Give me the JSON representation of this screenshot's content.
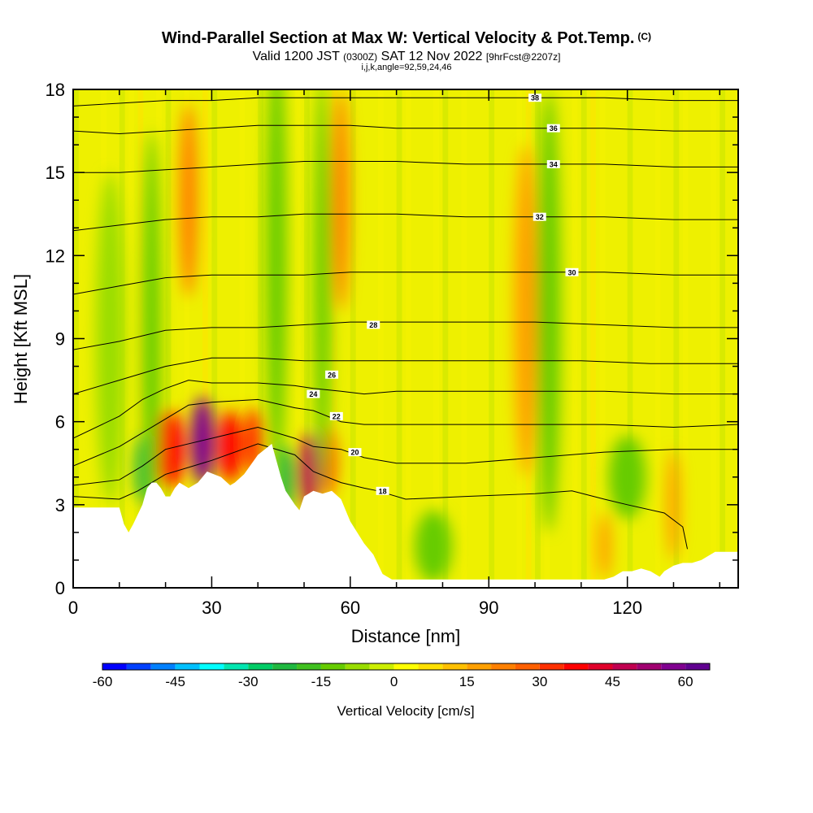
{
  "header": {
    "title": "Wind-Parallel Section at Max W: Vertical Velocity & Pot.Temp.",
    "copyright": "(C)",
    "subtitle_a": "Valid 1200 JST",
    "subtitle_b": "(0300Z)",
    "subtitle_c": "SAT 12 Nov 2022",
    "subtitle_d": "[9hrFcst@2207z]",
    "subtitle2": "i,j,k,angle=92,59,24,46"
  },
  "chart_data": {
    "type": "heatmap",
    "xlabel": "Distance [nm]",
    "ylabel": "Height [Kft MSL]",
    "xlim": [
      0,
      144
    ],
    "ylim": [
      0,
      18
    ],
    "xticks": [
      0,
      30,
      60,
      90,
      120
    ],
    "xtick_labels": [
      "0",
      "30",
      "60",
      "90",
      "120"
    ],
    "yticks": [
      0,
      3,
      6,
      9,
      12,
      15,
      18
    ],
    "ytick_labels": [
      "0",
      "3",
      "6",
      "9",
      "12",
      "15",
      "18"
    ],
    "terrain": [
      [
        0,
        2.9
      ],
      [
        10,
        2.9
      ],
      [
        11,
        2.3
      ],
      [
        12,
        2.0
      ],
      [
        13,
        2.3
      ],
      [
        15,
        3.0
      ],
      [
        16,
        3.6
      ],
      [
        17,
        3.8
      ],
      [
        18,
        3.8
      ],
      [
        19,
        3.6
      ],
      [
        20,
        3.3
      ],
      [
        21,
        3.3
      ],
      [
        22,
        3.6
      ],
      [
        23,
        3.8
      ],
      [
        25,
        3.6
      ],
      [
        27,
        3.8
      ],
      [
        29,
        4.2
      ],
      [
        32,
        4.0
      ],
      [
        34,
        3.7
      ],
      [
        35,
        3.8
      ],
      [
        37,
        4.1
      ],
      [
        40,
        4.8
      ],
      [
        43,
        5.2
      ],
      [
        44,
        4.6
      ],
      [
        45,
        4.0
      ],
      [
        46,
        3.5
      ],
      [
        48,
        3.0
      ],
      [
        49,
        2.8
      ],
      [
        50,
        3.3
      ],
      [
        52,
        3.5
      ],
      [
        54,
        3.4
      ],
      [
        56,
        3.5
      ],
      [
        58,
        3.2
      ],
      [
        60,
        2.4
      ],
      [
        63,
        1.6
      ],
      [
        65,
        1.2
      ],
      [
        67,
        0.5
      ],
      [
        69,
        0.3
      ],
      [
        72,
        0.3
      ],
      [
        80,
        0.3
      ],
      [
        90,
        0.3
      ],
      [
        100,
        0.3
      ],
      [
        110,
        0.3
      ],
      [
        115,
        0.3
      ],
      [
        117,
        0.4
      ],
      [
        119,
        0.6
      ],
      [
        121,
        0.6
      ],
      [
        123,
        0.7
      ],
      [
        125,
        0.6
      ],
      [
        127,
        0.4
      ],
      [
        128,
        0.6
      ],
      [
        130,
        0.8
      ],
      [
        132,
        0.9
      ],
      [
        134,
        0.9
      ],
      [
        136,
        1.0
      ],
      [
        139,
        1.3
      ],
      [
        144,
        1.3
      ]
    ],
    "contours": [
      {
        "theta": 18,
        "label_x": 67,
        "label_y": 3.5,
        "points": [
          [
            0,
            3.3
          ],
          [
            10,
            3.2
          ],
          [
            14,
            3.5
          ],
          [
            20,
            4.1
          ],
          [
            30,
            4.6
          ],
          [
            40,
            5.2
          ],
          [
            48,
            4.8
          ],
          [
            52,
            4.2
          ],
          [
            58,
            3.8
          ],
          [
            63,
            3.6
          ],
          [
            66,
            3.5
          ],
          [
            72,
            3.2
          ],
          [
            85,
            3.3
          ],
          [
            100,
            3.4
          ],
          [
            108,
            3.5
          ],
          [
            115,
            3.2
          ],
          [
            120,
            3.0
          ],
          [
            128,
            2.7
          ],
          [
            132,
            2.2
          ],
          [
            133,
            1.4
          ]
        ]
      },
      {
        "theta": 20,
        "label_x": 61,
        "label_y": 4.9,
        "points": [
          [
            0,
            3.7
          ],
          [
            10,
            3.9
          ],
          [
            15,
            4.4
          ],
          [
            20,
            5.0
          ],
          [
            30,
            5.4
          ],
          [
            40,
            5.8
          ],
          [
            48,
            5.4
          ],
          [
            52,
            5.1
          ],
          [
            58,
            5.0
          ],
          [
            63,
            4.7
          ],
          [
            70,
            4.5
          ],
          [
            85,
            4.5
          ],
          [
            100,
            4.7
          ],
          [
            115,
            4.9
          ],
          [
            130,
            5.0
          ],
          [
            144,
            5.0
          ]
        ]
      },
      {
        "theta": 22,
        "label_x": 57,
        "label_y": 6.2,
        "points": [
          [
            0,
            4.4
          ],
          [
            10,
            5.1
          ],
          [
            15,
            5.6
          ],
          [
            20,
            6.1
          ],
          [
            25,
            6.6
          ],
          [
            30,
            6.7
          ],
          [
            40,
            6.8
          ],
          [
            48,
            6.5
          ],
          [
            52,
            6.4
          ],
          [
            58,
            6.0
          ],
          [
            63,
            5.9
          ],
          [
            70,
            5.9
          ],
          [
            85,
            5.9
          ],
          [
            100,
            5.9
          ],
          [
            115,
            5.9
          ],
          [
            130,
            5.8
          ],
          [
            144,
            5.9
          ]
        ]
      },
      {
        "theta": 24,
        "label_x": 52,
        "label_y": 7.0,
        "points": [
          [
            0,
            5.4
          ],
          [
            10,
            6.2
          ],
          [
            15,
            6.8
          ],
          [
            20,
            7.2
          ],
          [
            25,
            7.5
          ],
          [
            30,
            7.4
          ],
          [
            40,
            7.4
          ],
          [
            48,
            7.3
          ],
          [
            52,
            7.2
          ],
          [
            58,
            7.1
          ],
          [
            63,
            7.0
          ],
          [
            70,
            7.1
          ],
          [
            85,
            7.1
          ],
          [
            100,
            7.1
          ],
          [
            115,
            7.1
          ],
          [
            130,
            7.0
          ],
          [
            144,
            7.0
          ]
        ]
      },
      {
        "theta": 26,
        "label_x": 56,
        "label_y": 7.7,
        "points": [
          [
            0,
            7.0
          ],
          [
            10,
            7.5
          ],
          [
            20,
            8.0
          ],
          [
            30,
            8.3
          ],
          [
            40,
            8.3
          ],
          [
            50,
            8.2
          ],
          [
            58,
            8.2
          ],
          [
            65,
            8.2
          ],
          [
            80,
            8.2
          ],
          [
            95,
            8.2
          ],
          [
            110,
            8.2
          ],
          [
            125,
            8.1
          ],
          [
            144,
            8.1
          ]
        ]
      },
      {
        "theta": 28,
        "label_x": 65,
        "label_y": 9.5,
        "points": [
          [
            0,
            8.6
          ],
          [
            10,
            8.9
          ],
          [
            20,
            9.3
          ],
          [
            30,
            9.4
          ],
          [
            40,
            9.4
          ],
          [
            50,
            9.5
          ],
          [
            60,
            9.6
          ],
          [
            70,
            9.6
          ],
          [
            85,
            9.6
          ],
          [
            100,
            9.6
          ],
          [
            115,
            9.5
          ],
          [
            130,
            9.4
          ],
          [
            144,
            9.4
          ]
        ]
      },
      {
        "theta": 30,
        "label_x": 108,
        "label_y": 11.4,
        "points": [
          [
            0,
            10.6
          ],
          [
            10,
            10.9
          ],
          [
            20,
            11.2
          ],
          [
            30,
            11.3
          ],
          [
            40,
            11.3
          ],
          [
            50,
            11.3
          ],
          [
            60,
            11.4
          ],
          [
            70,
            11.4
          ],
          [
            85,
            11.4
          ],
          [
            100,
            11.4
          ],
          [
            115,
            11.4
          ],
          [
            130,
            11.3
          ],
          [
            144,
            11.3
          ]
        ]
      },
      {
        "theta": 32,
        "label_x": 101,
        "label_y": 13.4,
        "points": [
          [
            0,
            12.9
          ],
          [
            10,
            13.1
          ],
          [
            20,
            13.3
          ],
          [
            30,
            13.4
          ],
          [
            40,
            13.4
          ],
          [
            50,
            13.5
          ],
          [
            60,
            13.5
          ],
          [
            70,
            13.5
          ],
          [
            85,
            13.4
          ],
          [
            100,
            13.4
          ],
          [
            115,
            13.4
          ],
          [
            130,
            13.3
          ],
          [
            144,
            13.3
          ]
        ]
      },
      {
        "theta": 34,
        "label_x": 104,
        "label_y": 15.3,
        "points": [
          [
            0,
            15.0
          ],
          [
            10,
            15.0
          ],
          [
            20,
            15.1
          ],
          [
            30,
            15.2
          ],
          [
            40,
            15.3
          ],
          [
            50,
            15.4
          ],
          [
            60,
            15.4
          ],
          [
            70,
            15.4
          ],
          [
            85,
            15.3
          ],
          [
            100,
            15.3
          ],
          [
            115,
            15.3
          ],
          [
            130,
            15.2
          ],
          [
            144,
            15.2
          ]
        ]
      },
      {
        "theta": 36,
        "label_x": 104,
        "label_y": 16.6,
        "points": [
          [
            0,
            16.5
          ],
          [
            10,
            16.4
          ],
          [
            20,
            16.5
          ],
          [
            30,
            16.6
          ],
          [
            40,
            16.7
          ],
          [
            50,
            16.7
          ],
          [
            60,
            16.7
          ],
          [
            70,
            16.6
          ],
          [
            85,
            16.6
          ],
          [
            100,
            16.6
          ],
          [
            115,
            16.6
          ],
          [
            130,
            16.5
          ],
          [
            144,
            16.5
          ]
        ]
      },
      {
        "theta": 38,
        "label_x": 100,
        "label_y": 17.7,
        "points": [
          [
            0,
            17.4
          ],
          [
            10,
            17.5
          ],
          [
            20,
            17.6
          ],
          [
            30,
            17.6
          ],
          [
            40,
            17.7
          ],
          [
            50,
            17.7
          ],
          [
            60,
            17.7
          ],
          [
            70,
            17.7
          ],
          [
            85,
            17.7
          ],
          [
            100,
            17.7
          ],
          [
            115,
            17.7
          ],
          [
            130,
            17.6
          ],
          [
            144,
            17.6
          ]
        ]
      }
    ],
    "velocity_regions": [
      {
        "value": -25,
        "center": [
          46,
          3.9
        ],
        "radius": [
          2.0,
          1.2
        ]
      },
      {
        "value": -25,
        "center": [
          15,
          4.3
        ],
        "radius": [
          1.8,
          1.2
        ]
      },
      {
        "value": 55,
        "center": [
          28,
          5.3
        ],
        "radius": [
          2.5,
          1.6
        ]
      },
      {
        "value": 45,
        "center": [
          51,
          4.2
        ],
        "radius": [
          2.2,
          1.4
        ]
      },
      {
        "value": 35,
        "center": [
          21,
          5.0
        ],
        "radius": [
          3.0,
          1.4
        ]
      },
      {
        "value": 35,
        "center": [
          34,
          5.1
        ],
        "radius": [
          2.5,
          1.3
        ]
      },
      {
        "value": 30,
        "center": [
          39,
          5.3
        ],
        "radius": [
          2.0,
          1.2
        ]
      },
      {
        "value": 30,
        "center": [
          55,
          4.6
        ],
        "radius": [
          2.0,
          1.3
        ]
      },
      {
        "value": 20,
        "center": [
          58,
          14.0
        ],
        "radius": [
          1.8,
          4.0
        ]
      },
      {
        "value": 20,
        "center": [
          25,
          14.0
        ],
        "radius": [
          2.0,
          3.5
        ]
      },
      {
        "value": 15,
        "center": [
          98,
          10.0
        ],
        "radius": [
          2.5,
          6.0
        ]
      },
      {
        "value": 15,
        "center": [
          130,
          3.0
        ],
        "radius": [
          1.5,
          2.0
        ]
      },
      {
        "value": 15,
        "center": [
          115,
          1.5
        ],
        "radius": [
          1.5,
          1.2
        ]
      },
      {
        "value": -15,
        "center": [
          17,
          9.0
        ],
        "radius": [
          2.0,
          7.5
        ]
      },
      {
        "value": -15,
        "center": [
          44,
          12.0
        ],
        "radius": [
          2.2,
          8.0
        ]
      },
      {
        "value": -15,
        "center": [
          54,
          11.0
        ],
        "radius": [
          1.8,
          7.5
        ]
      },
      {
        "value": -12,
        "center": [
          103,
          10.0
        ],
        "radius": [
          2.5,
          8.0
        ]
      },
      {
        "value": -12,
        "center": [
          120,
          4.0
        ],
        "radius": [
          4.0,
          1.5
        ]
      },
      {
        "value": -12,
        "center": [
          78,
          1.5
        ],
        "radius": [
          4.0,
          1.3
        ]
      },
      {
        "value": -10,
        "center": [
          8,
          9.0
        ],
        "radius": [
          3.0,
          6.0
        ]
      }
    ]
  },
  "colorbar": {
    "title": "Vertical Velocity [cm/s]",
    "min": -60,
    "max": 65,
    "step": 5,
    "tick_values": [
      -60,
      -45,
      -30,
      -15,
      0,
      15,
      30,
      45,
      60
    ],
    "tick_labels": [
      "-60",
      "-45",
      "-30",
      "-15",
      "0",
      "15",
      "30",
      "45",
      "60"
    ],
    "colors": [
      "#0000ff",
      "#0040ff",
      "#0080ff",
      "#00c0ff",
      "#00ffff",
      "#00e6b0",
      "#00cc66",
      "#20b840",
      "#40c020",
      "#66cc00",
      "#99dd00",
      "#ccee00",
      "#ffff00",
      "#ffe000",
      "#ffc000",
      "#ffa000",
      "#ff8000",
      "#ff6000",
      "#ff3000",
      "#ff0000",
      "#e0002a",
      "#c00050",
      "#a00070",
      "#800090",
      "#600090"
    ]
  }
}
